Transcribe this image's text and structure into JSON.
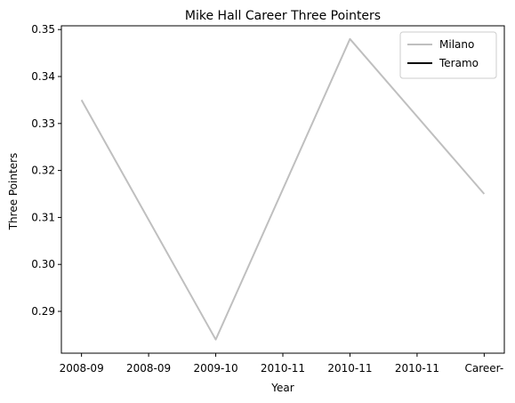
{
  "chart_data": {
    "type": "line",
    "title": "Mike Hall  Career Three Pointers",
    "xlabel": "Year",
    "ylabel": "Three Pointers",
    "categories": [
      "2008-09",
      "2008-09",
      "2009-10",
      "2010-11",
      "2010-11",
      "2010-11",
      "Career-"
    ],
    "yticks": [
      "0.29",
      "0.30",
      "0.31",
      "0.32",
      "0.33",
      "0.34",
      "0.35"
    ],
    "ylim": [
      0.2811,
      0.3508
    ],
    "grid": false,
    "legend_position": "top-right",
    "series": [
      {
        "name": "Milano",
        "color": "#bfbfbf",
        "points": [
          {
            "x": 0,
            "y": 0.335
          },
          {
            "x": 2,
            "y": 0.284
          },
          {
            "x": 4,
            "y": 0.348
          },
          {
            "x": 6,
            "y": 0.315
          }
        ]
      },
      {
        "name": "Teramo",
        "color": "#000000",
        "points": []
      }
    ]
  }
}
